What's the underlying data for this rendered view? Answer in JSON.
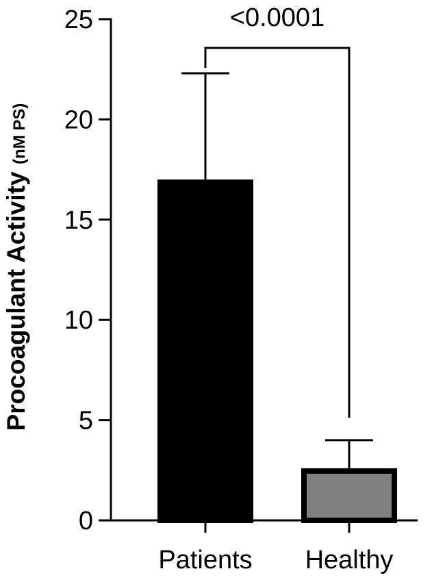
{
  "chart_data": {
    "type": "bar",
    "categories": [
      "Patients",
      "Healthy"
    ],
    "values": [
      17.0,
      2.6
    ],
    "error_upper": [
      22.3,
      4.0
    ],
    "ylabel": "Procoagulant Activity",
    "ylabel_unit": "(nM PS)",
    "ylim": [
      0,
      25
    ],
    "yticks": [
      0,
      5,
      10,
      15,
      20,
      25
    ],
    "ytick_labels": [
      "0",
      "5",
      "10",
      "15",
      "20",
      "25"
    ],
    "bar_colors": [
      "#000000",
      "#808080"
    ],
    "bar_edge_color": "#000000",
    "significance": {
      "label": "<0.0001",
      "between": [
        "Patients",
        "Healthy"
      ]
    },
    "grid": false
  }
}
